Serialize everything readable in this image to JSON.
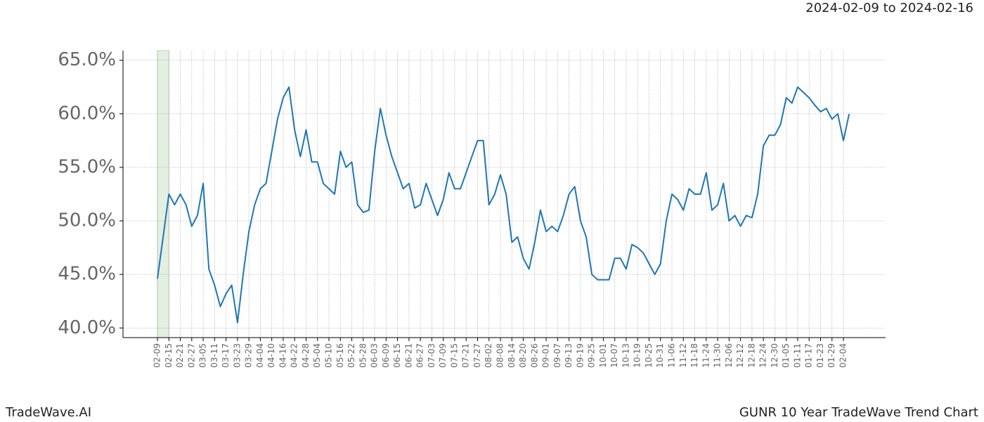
{
  "chart_data": {
    "type": "line",
    "date_range": "2024-02-09 to 2024-02-16",
    "title": "GUNR 10 Year TradeWave Trend Chart",
    "brand": "TradeWave.AI",
    "categories": [
      "02-09",
      null,
      "02-15",
      null,
      "02-21",
      null,
      "02-27",
      null,
      "03-05",
      null,
      "03-11",
      null,
      "03-17",
      null,
      "03-23",
      null,
      "03-29",
      null,
      "04-04",
      null,
      "04-10",
      null,
      "04-16",
      null,
      "04-22",
      null,
      "04-28",
      null,
      "05-04",
      null,
      "05-10",
      null,
      "05-16",
      null,
      "05-22",
      null,
      "05-28",
      null,
      "06-03",
      null,
      "06-09",
      null,
      "06-15",
      null,
      "06-21",
      null,
      "06-27",
      null,
      "07-03",
      null,
      "07-09",
      null,
      "07-15",
      null,
      "07-21",
      null,
      "07-27",
      null,
      "08-02",
      null,
      "08-08",
      null,
      "08-14",
      null,
      "08-20",
      null,
      "08-26",
      null,
      "09-01",
      null,
      "09-07",
      null,
      "09-13",
      null,
      "09-19",
      null,
      "09-25",
      null,
      "10-01",
      null,
      "10-07",
      null,
      "10-13",
      null,
      "10-19",
      null,
      "10-25",
      null,
      "10-31",
      null,
      "11-06",
      null,
      "11-12",
      null,
      "11-18",
      null,
      "11-24",
      null,
      "11-30",
      null,
      "12-06",
      null,
      "12-12",
      null,
      "12-18",
      null,
      "12-24",
      null,
      "12-30",
      null,
      "01-05",
      null,
      "01-11",
      null,
      "01-17",
      null,
      "01-23",
      null,
      "01-29",
      null,
      "02-04",
      null
    ],
    "series": [
      {
        "color": "#1f77b4",
        "values": [
          44.6,
          48.5,
          52.5,
          51.5,
          52.5,
          51.5,
          49.5,
          50.5,
          53.5,
          45.5,
          44,
          42,
          43.2,
          44,
          40.5,
          45,
          49,
          51.5,
          53,
          53.5,
          56.5,
          59.5,
          61.5,
          62.5,
          58.5,
          56,
          58.5,
          55.5,
          55.5,
          53.5,
          53,
          52.5,
          56.5,
          55,
          55.5,
          51.5,
          50.8,
          51,
          56.5,
          60.5,
          58,
          56,
          54.5,
          53,
          53.5,
          51.2,
          51.5,
          53.5,
          52,
          50.5,
          52,
          54.5,
          53,
          53,
          54.5,
          56,
          57.5,
          57.5,
          51.5,
          52.5,
          54.3,
          52.5,
          48,
          48.5,
          46.5,
          45.5,
          48,
          51,
          49,
          49.5,
          49,
          50.5,
          52.5,
          53.2,
          50,
          48.5,
          45,
          44.5,
          44.5,
          44.5,
          46.5,
          46.5,
          45.5,
          47.8,
          47.5,
          47,
          46,
          45,
          46,
          50,
          52.5,
          52,
          51,
          53,
          52.5,
          52.5,
          54.5,
          51,
          51.5,
          53.5,
          50,
          50.5,
          49.5,
          50.5,
          50.3,
          52.5,
          57,
          58,
          58,
          59,
          61.5,
          61,
          62.5,
          62,
          61.5,
          60.8,
          60.2,
          60.5,
          59.5,
          60,
          57.5,
          60
        ]
      }
    ],
    "highlight": {
      "start": 0,
      "end": 2,
      "color": "#e3efe0"
    },
    "ylim": [
      39.1,
      65.9
    ],
    "yticks": [
      {
        "value": 40,
        "label": "40.0%"
      },
      {
        "value": 45,
        "label": "45.0%"
      },
      {
        "value": 50,
        "label": "50.0%"
      },
      {
        "value": 55,
        "label": "55.0%"
      },
      {
        "value": 60,
        "label": "60.0%"
      },
      {
        "value": 65,
        "label": "65.0%"
      }
    ],
    "grid": true
  }
}
